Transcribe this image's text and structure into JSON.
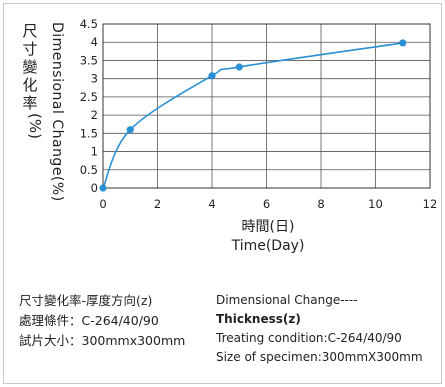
{
  "chart_data": {
    "type": "line",
    "title": "",
    "ylabel_chinese": "尺寸變化率",
    "ylabel_unit": "(%)",
    "ylabel_english": "Dimensional Change(%)",
    "xlabel_chinese": "時間(日)",
    "xlabel_english": "Time(Day)",
    "xlim": [
      0,
      12
    ],
    "ylim": [
      0,
      4.5
    ],
    "xticks": [
      "0",
      "2",
      "4",
      "6",
      "8",
      "10",
      "12"
    ],
    "yticks": [
      "0",
      "0.5",
      "1",
      "1.5",
      "2",
      "2.5",
      "3",
      "3.5",
      "4",
      "4.5"
    ],
    "grid": true,
    "line_color": "#2a90d4",
    "points": [
      {
        "x": 0,
        "y": 0
      },
      {
        "x": 1,
        "y": 1.6
      },
      {
        "x": 4,
        "y": 3.08
      },
      {
        "x": 5,
        "y": 3.32
      },
      {
        "x": 11,
        "y": 3.98
      }
    ]
  },
  "caption": {
    "left_lines": [
      "尺寸變化率-厚度方向(z)",
      "處理條件：C-264/40/90",
      "試片大小：300mmx300mm"
    ],
    "right_line1": "Dimensional Change----",
    "right_line2": "Thickness(z)",
    "right_line3": "Treating condition:C-264/40/90",
    "right_line4": "Size of specimen:300mmX300mm"
  }
}
